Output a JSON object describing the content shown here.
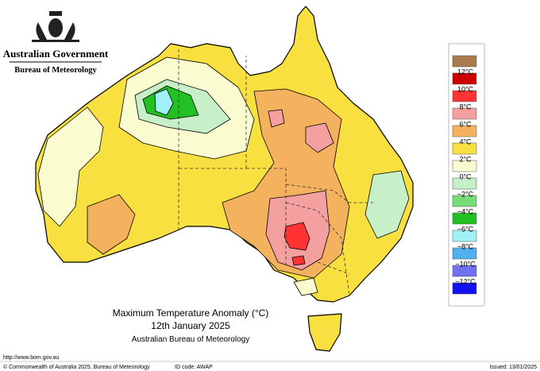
{
  "header": {
    "government": "Australian Government",
    "agency": "Bureau of Meteorology"
  },
  "title": {
    "line1": "Maximum Temperature Anomaly (°C)",
    "line2": "12th January 2025",
    "line3": "Australian Bureau of Meteorology"
  },
  "legend": {
    "colors": [
      "#a87a4e",
      "#cc0000",
      "#ff3333",
      "#f4a0a0",
      "#f4b25e",
      "#f8e040",
      "#fbfbd0",
      "#c8f0c8",
      "#78dc78",
      "#22c022",
      "#a0f0f8",
      "#50b0f0",
      "#7070f0",
      "#1010f0"
    ],
    "labels": [
      "12°C",
      "10°C",
      "8°C",
      "6°C",
      "4°C",
      "2°C",
      "0°C",
      "−2°C",
      "−4°C",
      "−6°C",
      "−8°C",
      "−10°C",
      "−12°C"
    ]
  },
  "footer": {
    "url": "http://www.bom.gov.au",
    "copyright": "© Commonwealth of Australia 2025, Bureau of Meteorology",
    "id_code": "ID code: AWAP",
    "issued": "Issued: 13/01/2025"
  }
}
